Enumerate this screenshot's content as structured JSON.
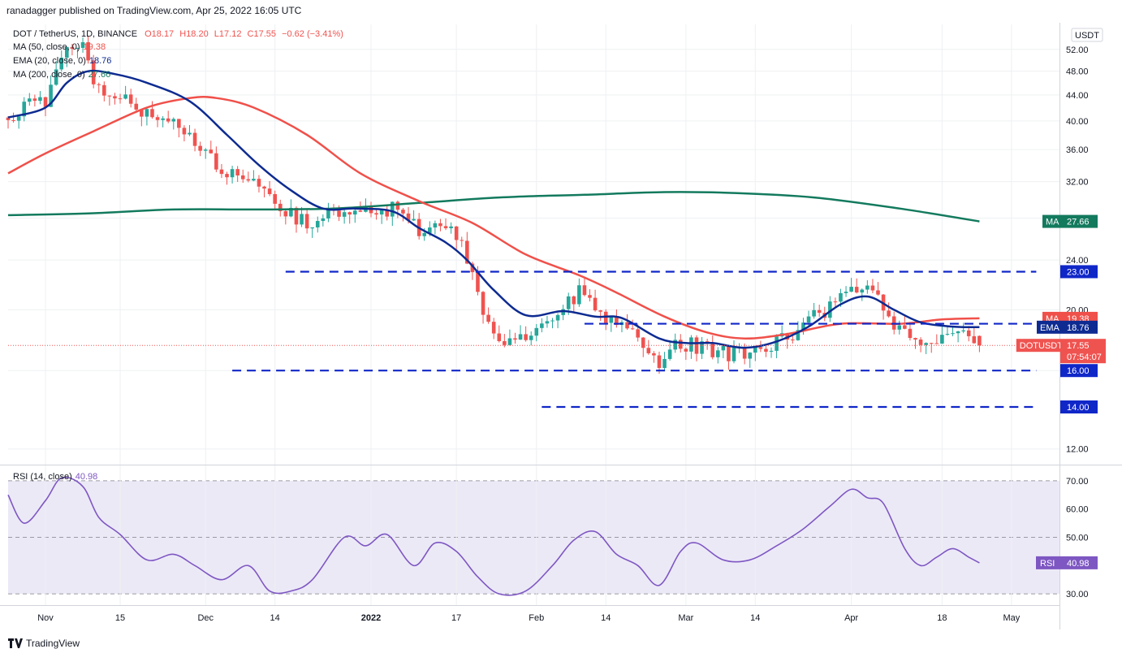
{
  "header": {
    "publisher": "ranadagger published on TradingView.com, Apr 25, 2022 16:05 UTC",
    "symbol": "DOT / TetherUS, 1D, BINANCE",
    "ohlc": {
      "o": "O18.17",
      "h": "H18.20",
      "l": "L17.12",
      "c": "C17.55",
      "chg": "−0.62 (−3.41%)"
    },
    "ma50": {
      "label": "MA (50, close, 0)",
      "value": "19.38"
    },
    "ema20": {
      "label": "EMA (20, close, 0)",
      "value": "18.76"
    },
    "ma200": {
      "label": "MA (200, close, 0)",
      "value": "27.66"
    },
    "rsi": {
      "label": "RSI (14, close)",
      "value": "40.98"
    }
  },
  "footer": {
    "brand": "TradingView"
  },
  "colors": {
    "up": "#26a69a",
    "down": "#ef5350",
    "ema": "#0d2b91",
    "ma50": "#f0504a",
    "ma200": "#137a5e",
    "rsi": "#7e57c2",
    "level": "#1027c8",
    "grid": "#eef0f3",
    "axis": "#131722"
  },
  "chart_data": [
    {
      "type": "candlestick",
      "title": "DOT / TetherUS, 1D, BINANCE",
      "currency": "USDT",
      "scale": "log",
      "ylim": [
        11.5,
        57
      ],
      "y_ticks": [
        "12.00",
        "16.00",
        "20.00",
        "24.00",
        "28.00",
        "32.00",
        "36.00",
        "40.00",
        "44.00",
        "48.00",
        "52.00",
        "5"
      ],
      "x_ticks": [
        "Nov",
        "15",
        "Dec",
        "14",
        "2022",
        "17",
        "Feb",
        "14",
        "Mar",
        "14",
        "Apr",
        "18",
        "May"
      ],
      "x_tick_dates": [
        "2021-11-01",
        "2021-11-15",
        "2021-12-01",
        "2021-12-14",
        "2022-01-01",
        "2022-01-17",
        "2022-02-01",
        "2022-02-14",
        "2022-03-01",
        "2022-03-14",
        "2022-04-01",
        "2022-04-18",
        "2022-05-01"
      ],
      "xlim": [
        "2021-10-25",
        "2022-05-10"
      ],
      "last": {
        "date": "2022-04-25",
        "open": 18.17,
        "high": 18.2,
        "low": 17.12,
        "close": 17.55
      },
      "ema20_ctrl": [
        [
          "2021-10-25",
          40.5
        ],
        [
          "2021-11-01",
          42
        ],
        [
          "2021-11-05",
          46
        ],
        [
          "2021-11-09",
          48
        ],
        [
          "2021-11-14",
          47.5
        ],
        [
          "2021-11-20",
          46
        ],
        [
          "2021-11-28",
          43
        ],
        [
          "2021-12-05",
          38
        ],
        [
          "2021-12-11",
          34
        ],
        [
          "2021-12-17",
          31
        ],
        [
          "2021-12-23",
          29
        ],
        [
          "2021-12-29",
          29
        ],
        [
          "2022-01-05",
          28.7
        ],
        [
          "2022-01-10",
          27
        ],
        [
          "2022-01-15",
          25.6
        ],
        [
          "2022-01-19",
          24
        ],
        [
          "2022-01-24",
          21.5
        ],
        [
          "2022-01-30",
          19.6
        ],
        [
          "2022-02-06",
          19.9
        ],
        [
          "2022-02-12",
          19.5
        ],
        [
          "2022-02-17",
          19.4
        ],
        [
          "2022-02-24",
          18
        ],
        [
          "2022-03-01",
          17.7
        ],
        [
          "2022-03-06",
          17.7
        ],
        [
          "2022-03-12",
          17.4
        ],
        [
          "2022-03-18",
          17.8
        ],
        [
          "2022-03-24",
          18.8
        ],
        [
          "2022-03-30",
          20.4
        ],
        [
          "2022-04-04",
          21
        ],
        [
          "2022-04-09",
          20
        ],
        [
          "2022-04-14",
          19.1
        ],
        [
          "2022-04-20",
          18.8
        ],
        [
          "2022-04-25",
          18.76
        ]
      ],
      "ma50_ctrl": [
        [
          "2021-10-25",
          33
        ],
        [
          "2021-11-01",
          35.5
        ],
        [
          "2021-11-10",
          38.5
        ],
        [
          "2021-11-20",
          42
        ],
        [
          "2021-11-28",
          43.5
        ],
        [
          "2021-12-03",
          43.5
        ],
        [
          "2021-12-10",
          42
        ],
        [
          "2021-12-20",
          38
        ],
        [
          "2021-12-30",
          33
        ],
        [
          "2022-01-10",
          29.8
        ],
        [
          "2022-01-20",
          27.5
        ],
        [
          "2022-01-30",
          24.5
        ],
        [
          "2022-02-09",
          22.7
        ],
        [
          "2022-02-16",
          21.3
        ],
        [
          "2022-02-25",
          19.5
        ],
        [
          "2022-03-05",
          18.4
        ],
        [
          "2022-03-12",
          18
        ],
        [
          "2022-03-20",
          18.3
        ],
        [
          "2022-03-30",
          19
        ],
        [
          "2022-04-10",
          19
        ],
        [
          "2022-04-18",
          19.3
        ],
        [
          "2022-04-25",
          19.38
        ]
      ],
      "ma200_ctrl": [
        [
          "2021-10-25",
          28.3
        ],
        [
          "2021-11-10",
          28.5
        ],
        [
          "2021-11-25",
          28.9
        ],
        [
          "2021-12-10",
          28.9
        ],
        [
          "2021-12-25",
          29
        ],
        [
          "2022-01-10",
          29.6
        ],
        [
          "2022-01-25",
          30.2
        ],
        [
          "2022-02-10",
          30.5
        ],
        [
          "2022-02-25",
          30.8
        ],
        [
          "2022-03-10",
          30.7
        ],
        [
          "2022-03-25",
          30.2
        ],
        [
          "2022-04-10",
          29
        ],
        [
          "2022-04-25",
          27.66
        ]
      ],
      "candle_ctrl": [
        [
          "2021-10-25",
          40.5
        ],
        [
          "2021-10-28",
          42
        ],
        [
          "2021-11-01",
          43
        ],
        [
          "2021-11-04",
          51
        ],
        [
          "2021-11-08",
          52.5
        ],
        [
          "2021-11-10",
          47
        ],
        [
          "2021-11-13",
          44
        ],
        [
          "2021-11-17",
          43
        ],
        [
          "2021-11-20",
          41
        ],
        [
          "2021-11-23",
          41
        ],
        [
          "2021-11-27",
          38
        ],
        [
          "2021-12-01",
          36
        ],
        [
          "2021-12-04",
          33.5
        ],
        [
          "2021-12-08",
          33
        ],
        [
          "2021-12-12",
          30.5
        ],
        [
          "2021-12-16",
          28.5
        ],
        [
          "2021-12-20",
          27.6
        ],
        [
          "2021-12-26",
          28.8
        ],
        [
          "2021-12-29",
          29.2
        ],
        [
          "2022-01-02",
          28.6
        ],
        [
          "2022-01-06",
          29
        ],
        [
          "2022-01-10",
          26.5
        ],
        [
          "2022-01-15",
          27.4
        ],
        [
          "2022-01-18",
          26
        ],
        [
          "2022-01-21",
          21
        ],
        [
          "2022-01-24",
          18
        ],
        [
          "2022-01-30",
          18.2
        ],
        [
          "2022-02-04",
          19.2
        ],
        [
          "2022-02-09",
          21.5
        ],
        [
          "2022-02-14",
          19.5
        ],
        [
          "2022-02-19",
          18.5
        ],
        [
          "2022-02-24",
          16.6
        ],
        [
          "2022-02-28",
          17.8
        ],
        [
          "2022-03-04",
          17.3
        ],
        [
          "2022-03-10",
          17
        ],
        [
          "2022-03-16",
          17.2
        ],
        [
          "2022-03-22",
          18.5
        ],
        [
          "2022-03-27",
          20
        ],
        [
          "2022-04-01",
          21.5
        ],
        [
          "2022-04-05",
          21.2
        ],
        [
          "2022-04-09",
          19
        ],
        [
          "2022-04-12",
          17.7
        ],
        [
          "2022-04-15",
          17.8
        ],
        [
          "2022-04-18",
          17.9
        ],
        [
          "2022-04-22",
          18.1
        ],
        [
          "2022-04-25",
          17.55
        ]
      ],
      "levels": [
        {
          "value": 23.0,
          "label": "23.00",
          "from": "2021-12-16",
          "to": "2022-04-25"
        },
        {
          "value": 19.0,
          "label": "19.00",
          "from": "2022-02-10",
          "to": "2022-04-25"
        },
        {
          "value": 16.0,
          "label": "16.00",
          "from": "2021-12-06",
          "to": "2022-04-25"
        },
        {
          "value": 14.0,
          "label": "14.00",
          "from": "2022-02-02",
          "to": "2022-04-25"
        }
      ],
      "price_badges": [
        {
          "tag": "MA",
          "value": "27.66",
          "color": "#137a5e"
        },
        {
          "tag": "MA",
          "value": "19.38",
          "color": "#f0504a"
        },
        {
          "tag": "EMA",
          "value": "18.76",
          "color": "#0d2b91"
        },
        {
          "tag": "DOTUSDT",
          "value": "17.55",
          "sub": "07:54:07",
          "color": "#ef5350"
        }
      ]
    },
    {
      "type": "line",
      "title": "RSI (14, close)",
      "ylim": [
        26,
        74
      ],
      "y_ticks": [
        "30.00",
        "40.00",
        "50.00",
        "60.00",
        "70.00"
      ],
      "bands": {
        "upper": 70,
        "middle": 50,
        "lower": 30
      },
      "last": "40.98",
      "rsi_ctrl": [
        [
          "2021-10-25",
          65
        ],
        [
          "2021-10-28",
          55
        ],
        [
          "2021-11-01",
          63
        ],
        [
          "2021-11-04",
          71
        ],
        [
          "2021-11-08",
          68
        ],
        [
          "2021-11-11",
          57
        ],
        [
          "2021-11-15",
          51
        ],
        [
          "2021-11-20",
          42
        ],
        [
          "2021-11-25",
          44
        ],
        [
          "2021-11-29",
          40
        ],
        [
          "2021-12-04",
          35
        ],
        [
          "2021-12-09",
          40
        ],
        [
          "2021-12-13",
          31
        ],
        [
          "2021-12-17",
          31
        ],
        [
          "2021-12-21",
          35
        ],
        [
          "2021-12-27",
          50
        ],
        [
          "2021-12-31",
          47
        ],
        [
          "2022-01-04",
          51
        ],
        [
          "2022-01-09",
          40
        ],
        [
          "2022-01-13",
          48
        ],
        [
          "2022-01-17",
          45
        ],
        [
          "2022-01-21",
          36
        ],
        [
          "2022-01-25",
          30
        ],
        [
          "2022-01-30",
          31
        ],
        [
          "2022-02-04",
          40
        ],
        [
          "2022-02-08",
          49
        ],
        [
          "2022-02-12",
          52
        ],
        [
          "2022-02-16",
          44
        ],
        [
          "2022-02-20",
          40
        ],
        [
          "2022-02-24",
          33
        ],
        [
          "2022-02-28",
          45
        ],
        [
          "2022-03-03",
          48
        ],
        [
          "2022-03-08",
          42
        ],
        [
          "2022-03-13",
          42
        ],
        [
          "2022-03-18",
          47
        ],
        [
          "2022-03-23",
          53
        ],
        [
          "2022-03-28",
          61
        ],
        [
          "2022-04-01",
          67
        ],
        [
          "2022-04-04",
          64
        ],
        [
          "2022-04-07",
          62
        ],
        [
          "2022-04-11",
          46
        ],
        [
          "2022-04-14",
          40
        ],
        [
          "2022-04-17",
          43
        ],
        [
          "2022-04-20",
          46
        ],
        [
          "2022-04-23",
          43
        ],
        [
          "2022-04-25",
          40.98
        ]
      ]
    }
  ]
}
